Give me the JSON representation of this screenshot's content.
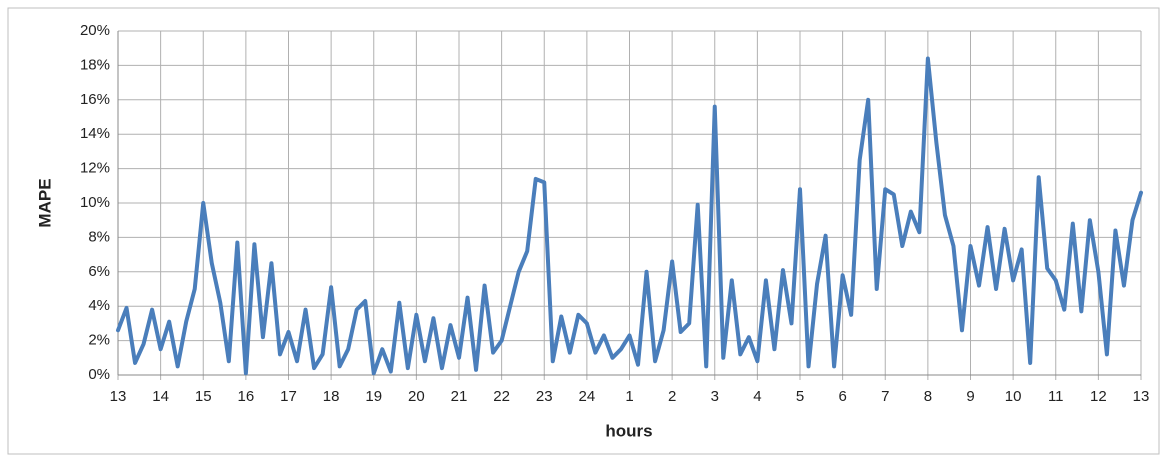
{
  "chart_data": {
    "type": "line",
    "x_label": "hours",
    "y_label": "MAPE",
    "categories": [
      "13",
      null,
      null,
      null,
      null,
      "14",
      null,
      null,
      null,
      null,
      "15",
      null,
      null,
      null,
      null,
      "16",
      null,
      null,
      null,
      null,
      "17",
      null,
      null,
      null,
      null,
      "18",
      null,
      null,
      null,
      null,
      "19",
      null,
      null,
      null,
      null,
      "20",
      null,
      null,
      null,
      null,
      "21",
      null,
      null,
      null,
      null,
      "22",
      null,
      null,
      null,
      null,
      "23",
      null,
      null,
      null,
      null,
      "24",
      null,
      null,
      null,
      null,
      "1",
      null,
      null,
      null,
      null,
      "2",
      null,
      null,
      null,
      null,
      "3",
      null,
      null,
      null,
      null,
      "4",
      null,
      null,
      null,
      null,
      "5",
      null,
      null,
      null,
      null,
      "6",
      null,
      null,
      null,
      null,
      "7",
      null,
      null,
      null,
      null,
      "8",
      null,
      null,
      null,
      null,
      "9",
      null,
      null,
      null,
      null,
      "10",
      null,
      null,
      null,
      null,
      "11",
      null,
      null,
      null,
      null,
      "12",
      null,
      null,
      null,
      null,
      "13"
    ],
    "values": [
      2.6,
      3.9,
      0.7,
      1.8,
      3.8,
      1.5,
      3.1,
      0.5,
      3.1,
      5.0,
      10.0,
      6.5,
      4.2,
      0.8,
      7.7,
      0.1,
      7.6,
      2.2,
      6.5,
      1.2,
      2.5,
      0.8,
      3.8,
      0.4,
      1.2,
      5.1,
      0.5,
      1.5,
      3.8,
      4.3,
      0.1,
      1.5,
      0.2,
      4.2,
      0.4,
      3.5,
      0.8,
      3.3,
      0.4,
      2.9,
      1.0,
      4.5,
      0.3,
      5.2,
      1.3,
      2.0,
      4.0,
      6.0,
      7.2,
      11.4,
      11.2,
      0.8,
      3.4,
      1.3,
      3.5,
      3.0,
      1.3,
      2.3,
      1.0,
      1.5,
      2.3,
      0.6,
      6.0,
      0.8,
      2.6,
      6.6,
      2.5,
      3.0,
      9.9,
      0.5,
      15.6,
      1.0,
      5.5,
      1.2,
      2.2,
      0.8,
      5.5,
      1.5,
      6.1,
      3.0,
      10.8,
      0.5,
      5.3,
      8.1,
      0.5,
      5.8,
      3.5,
      12.5,
      16.0,
      5.0,
      10.8,
      10.5,
      7.5,
      9.5,
      8.3,
      18.4,
      13.5,
      9.3,
      7.5,
      2.6,
      7.5,
      5.2,
      8.6,
      5.0,
      8.5,
      5.5,
      7.3,
      0.7,
      11.5,
      6.2,
      5.5,
      3.8,
      8.8,
      3.7,
      9.0,
      6.0,
      1.2,
      8.4,
      5.2,
      9.0,
      10.6
    ],
    "color": "#4a7ebb",
    "ylim": [
      0,
      20
    ],
    "yticks": [
      {
        "value": 0,
        "label": "0%"
      },
      {
        "value": 2,
        "label": "2%"
      },
      {
        "value": 4,
        "label": "4%"
      },
      {
        "value": 6,
        "label": "6%"
      },
      {
        "value": 8,
        "label": "8%"
      },
      {
        "value": 10,
        "label": "10%"
      },
      {
        "value": 12,
        "label": "12%"
      },
      {
        "value": 14,
        "label": "14%"
      },
      {
        "value": 16,
        "label": "16%"
      },
      {
        "value": 18,
        "label": "18%"
      },
      {
        "value": 20,
        "label": "20%"
      }
    ],
    "grid": true
  }
}
